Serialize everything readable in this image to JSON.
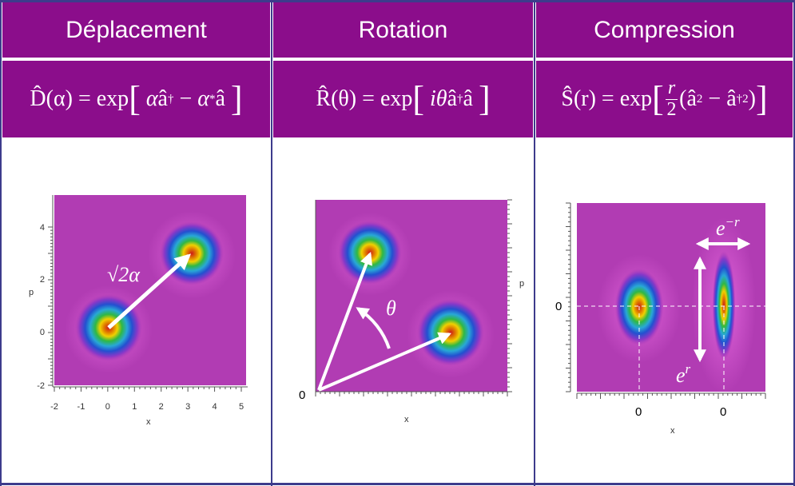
{
  "headers": [
    "Déplacement",
    "Rotation",
    "Compression"
  ],
  "formulas": {
    "displacement": {
      "lhs": "D̂(α)",
      "op": "=",
      "fn": "exp"
    },
    "rotation": {
      "lhs": "R̂(θ)",
      "op": "=",
      "fn": "exp"
    },
    "compression": {
      "lhs": "Ŝ(r)",
      "op": "=",
      "fn": "exp"
    }
  },
  "panel1": {
    "x_ticks": [
      "-2",
      "-1",
      "0",
      "1",
      "2",
      "3",
      "4",
      "5"
    ],
    "y_ticks": [
      "-2",
      "0",
      "2",
      "4"
    ],
    "x_axis_label": "x",
    "y_axis_label": "p",
    "arrow_label": "√2α"
  },
  "panel2": {
    "origin_label": "0",
    "x_axis_label": "x",
    "y_axis_label": "p",
    "angle_label": "θ"
  },
  "panel3": {
    "y_tick": "0",
    "x_ticks": [
      "0",
      "0"
    ],
    "x_axis_label": "x",
    "label_top": "e",
    "label_top_exp": "−r",
    "label_side": "e",
    "label_side_exp": "r"
  },
  "colors": {
    "band": "#8b0d8b",
    "border": "#3d3b8c",
    "plot_bg": "#b13cb3"
  }
}
